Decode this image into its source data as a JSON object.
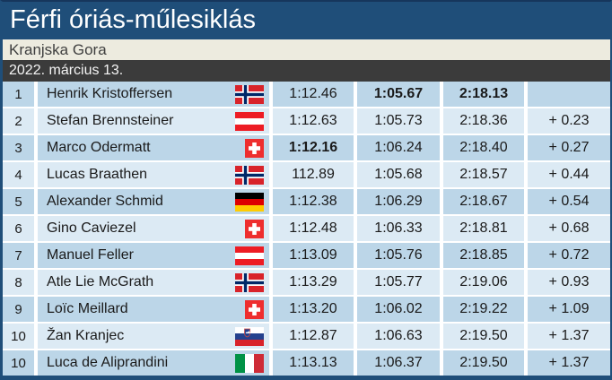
{
  "header": {
    "title": "Férfi óriás-műlesiklás",
    "location": "Kranjska Gora",
    "date": "2022. március 13."
  },
  "colors": {
    "header_bg": "#1F4E79",
    "location_bg": "#EDEBDF",
    "date_bg": "#3B3B3B",
    "row_odd": "#BCD6E8",
    "row_even": "#DCEAF4"
  },
  "results": [
    {
      "rank": "1",
      "name": "Henrik Kristoffersen",
      "country": "norway",
      "run1": "1:12.46",
      "run2": "1:05.67",
      "total": "2:18.13",
      "gap": "",
      "bold": [
        "run2",
        "total"
      ]
    },
    {
      "rank": "2",
      "name": "Stefan Brennsteiner",
      "country": "austria",
      "run1": "1:12.63",
      "run2": "1:05.73",
      "total": "2:18.36",
      "gap": "+ 0.23",
      "bold": []
    },
    {
      "rank": "3",
      "name": "Marco Odermatt",
      "country": "switzerland",
      "run1": "1:12.16",
      "run2": "1:06.24",
      "total": "2:18.40",
      "gap": "+ 0.27",
      "bold": [
        "run1"
      ]
    },
    {
      "rank": "4",
      "name": "Lucas Braathen",
      "country": "norway",
      "run1": "112.89",
      "run2": "1:05.68",
      "total": "2:18.57",
      "gap": "+ 0.44",
      "bold": []
    },
    {
      "rank": "5",
      "name": "Alexander Schmid",
      "country": "germany",
      "run1": "1:12.38",
      "run2": "1:06.29",
      "total": "2:18.67",
      "gap": "+ 0.54",
      "bold": []
    },
    {
      "rank": "6",
      "name": "Gino Caviezel",
      "country": "switzerland",
      "run1": "1:12.48",
      "run2": "1:06.33",
      "total": "2:18.81",
      "gap": "+ 0.68",
      "bold": []
    },
    {
      "rank": "7",
      "name": "Manuel Feller",
      "country": "austria",
      "run1": "1:13.09",
      "run2": "1:05.76",
      "total": "2:18.85",
      "gap": "+ 0.72",
      "bold": []
    },
    {
      "rank": "8",
      "name": "Atle Lie McGrath",
      "country": "norway",
      "run1": "1:13.29",
      "run2": "1:05.77",
      "total": "2:19.06",
      "gap": "+ 0.93",
      "bold": []
    },
    {
      "rank": "9",
      "name": "Loïc Meillard",
      "country": "switzerland",
      "run1": "1:13.20",
      "run2": "1:06.02",
      "total": "2:19.22",
      "gap": "+ 1.09",
      "bold": []
    },
    {
      "rank": "10",
      "name": "Žan Kranjec",
      "country": "slovenia",
      "run1": "1:12.87",
      "run2": "1:06.63",
      "total": "2:19.50",
      "gap": "+ 1.37",
      "bold": []
    },
    {
      "rank": "10",
      "name": "Luca de Aliprandini",
      "country": "italy",
      "run1": "1:13.13",
      "run2": "1:06.37",
      "total": "2:19.50",
      "gap": "+ 1.37",
      "bold": []
    }
  ]
}
